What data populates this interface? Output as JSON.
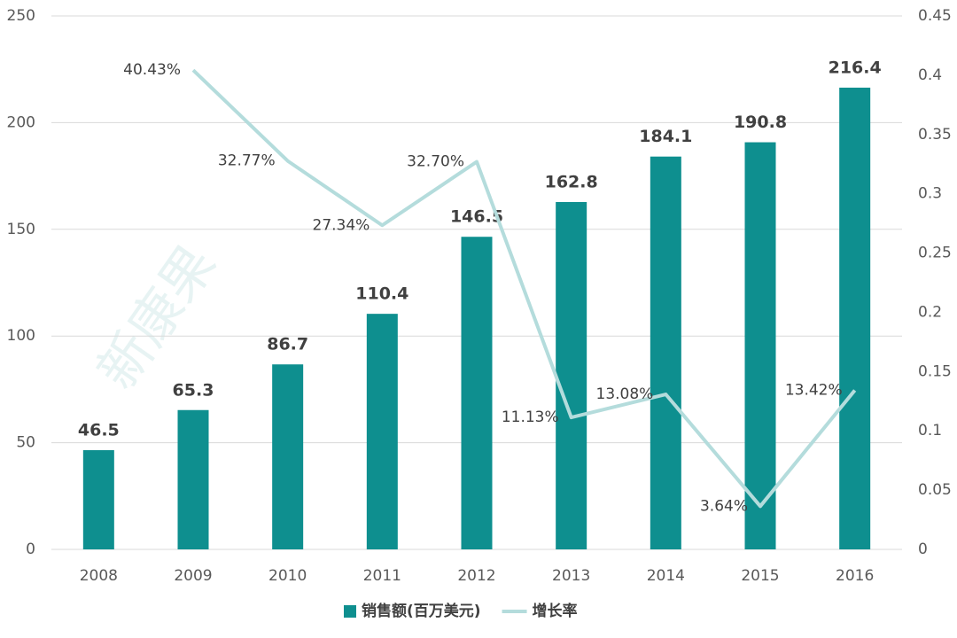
{
  "chart_data": {
    "type": "combo",
    "categories": [
      "2008",
      "2009",
      "2010",
      "2011",
      "2012",
      "2013",
      "2014",
      "2015",
      "2016"
    ],
    "series": [
      {
        "name": "销售额(百万美元)",
        "type": "bar",
        "color": "#0e8f8f",
        "values": [
          46.5,
          65.3,
          86.7,
          110.4,
          146.5,
          162.8,
          184.1,
          190.8,
          216.4
        ]
      },
      {
        "name": "增长率",
        "type": "line",
        "axis": "y2",
        "color": "#b4dcdc",
        "values": [
          null,
          0.4043,
          0.3277,
          0.2734,
          0.327,
          0.1113,
          0.1308,
          0.0364,
          0.1342
        ],
        "value_labels": [
          null,
          "40.43%",
          "32.77%",
          "27.34%",
          "32.70%",
          "11.13%",
          "13.08%",
          "3.64%",
          "13.42%"
        ]
      }
    ],
    "ylim": [
      0,
      250
    ],
    "yticks": [
      0,
      50,
      100,
      150,
      200,
      250
    ],
    "y2lim": [
      0,
      0.45
    ],
    "y2ticks": [
      0,
      0.05,
      0.1,
      0.15,
      0.2,
      0.25,
      0.3,
      0.35,
      0.4,
      0.45
    ],
    "grid": true,
    "legend": "bottom",
    "watermark": "新康果"
  }
}
